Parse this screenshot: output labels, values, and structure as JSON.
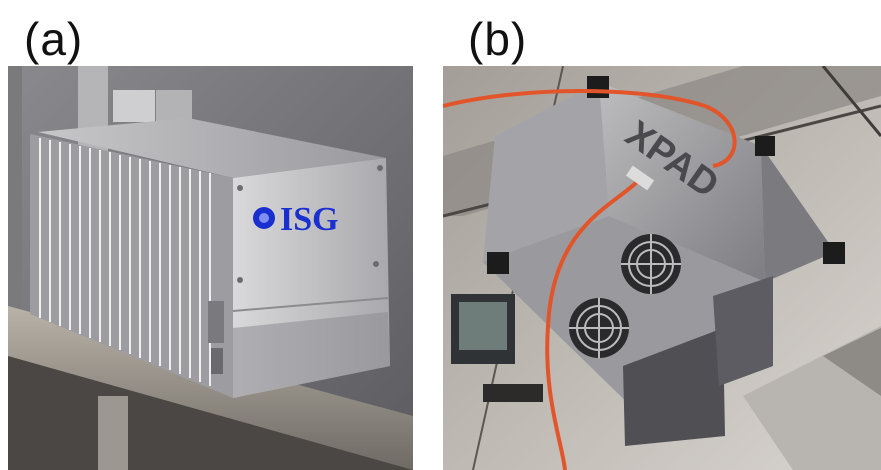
{
  "panels": [
    {
      "label": "(a)",
      "logo_text": "ISG",
      "logo_color": "#1a2fd0"
    },
    {
      "label": "(b)",
      "device_text": "XPAD",
      "cable_color": "#e2552b"
    }
  ]
}
